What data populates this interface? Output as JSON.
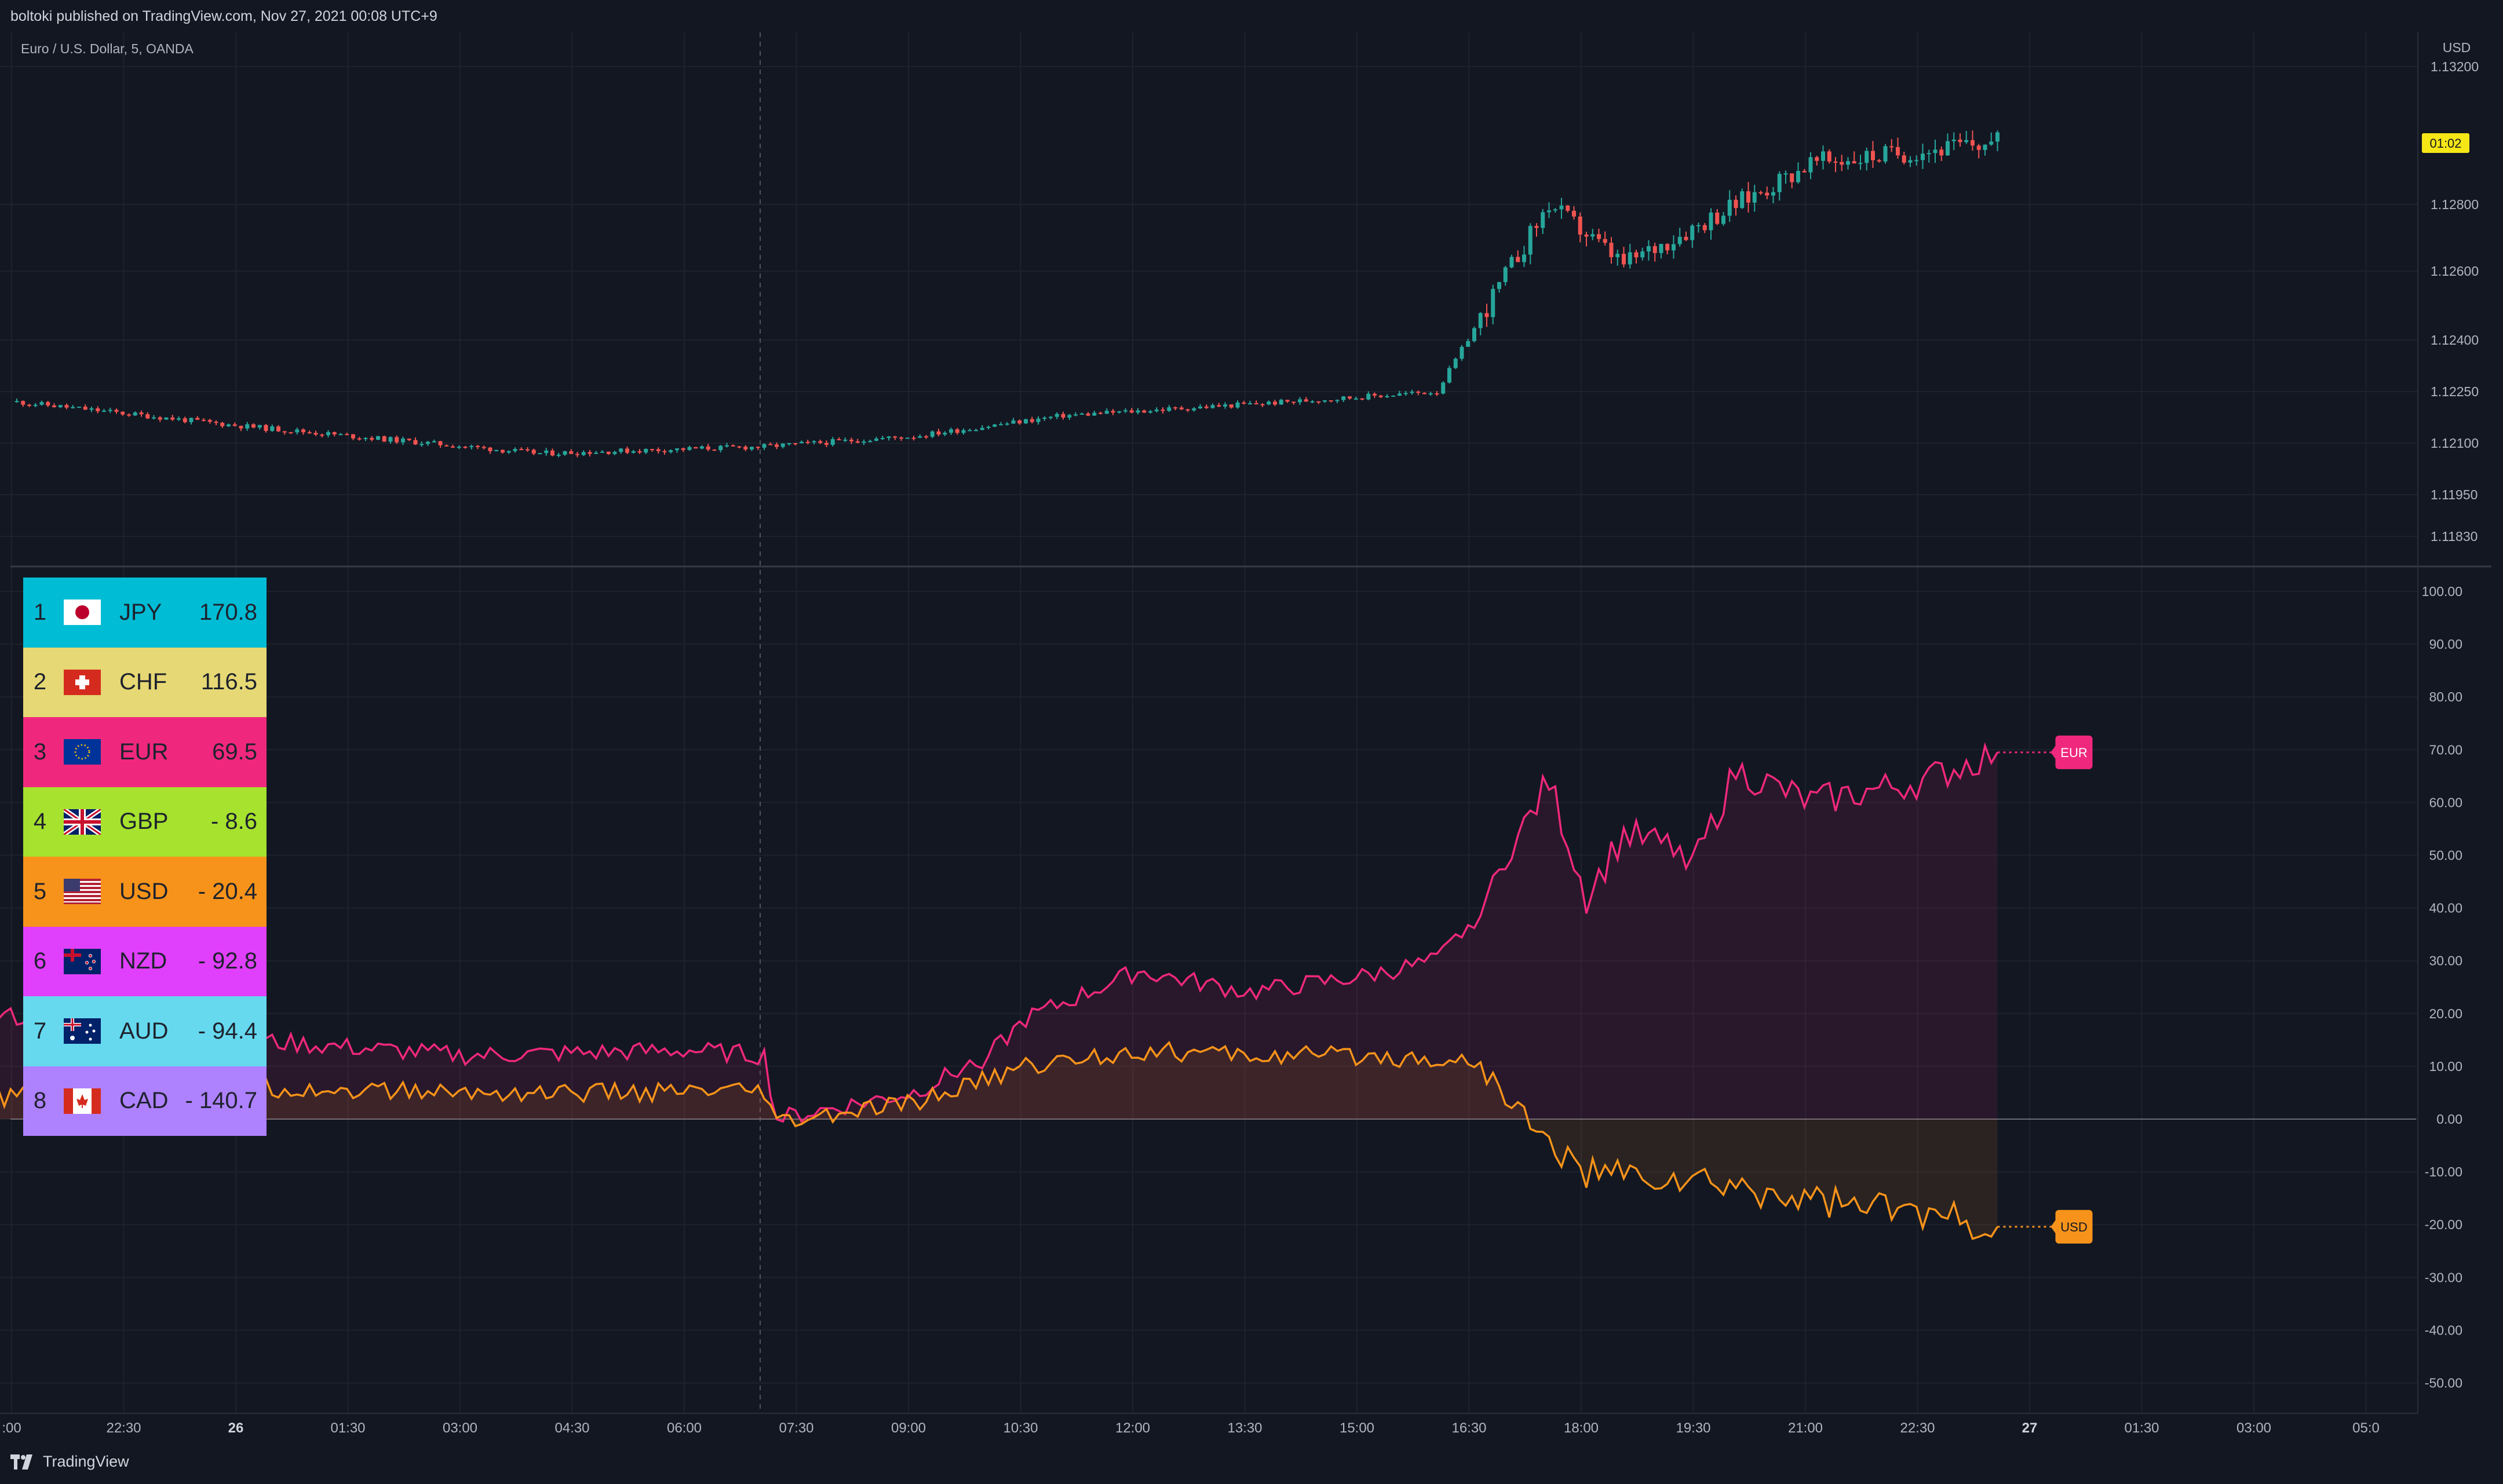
{
  "header": {
    "published": "boltoki published on TradingView.com, Nov 27, 2021 00:08 UTC+9",
    "symbol": "Euro / U.S. Dollar, 5, OANDA"
  },
  "footer": {
    "brand": "TradingView"
  },
  "colors": {
    "bg": "#131722",
    "grid": "#1e222d",
    "up": "#26a69a",
    "down": "#ef5350",
    "eur": "#f0287d",
    "usd": "#f7931a",
    "axis_text": "#b2b5be"
  },
  "price_axis": {
    "currency": "USD",
    "ticks": [
      "1.13200",
      "1.12800",
      "1.12600",
      "1.12400",
      "1.12250",
      "1.12100",
      "1.11950",
      "1.11830"
    ],
    "countdown": "01:02"
  },
  "strength_axis": {
    "ticks": [
      "100.00",
      "90.00",
      "80.00",
      "70.00",
      "60.00",
      "50.00",
      "40.00",
      "30.00",
      "20.00",
      "10.00",
      "0.00",
      "-10.00",
      "-20.00",
      "-30.00",
      "-40.00",
      "-50.00"
    ]
  },
  "time_axis": {
    "ticks": [
      ":00",
      "22:30",
      "26",
      "01:30",
      "03:00",
      "04:30",
      "06:00",
      "07:30",
      "09:00",
      "10:30",
      "12:00",
      "13:30",
      "15:00",
      "16:30",
      "18:00",
      "19:30",
      "21:00",
      "22:30",
      "27",
      "01:30",
      "03:00",
      "05:0"
    ]
  },
  "ranking": [
    {
      "rank": "1",
      "code": "JPY",
      "value": "170.8",
      "color": "#00bcd4",
      "flag": "jp-flag-icon"
    },
    {
      "rank": "2",
      "code": "CHF",
      "value": "116.5",
      "color": "#e6d874",
      "flag": "ch-flag-icon"
    },
    {
      "rank": "3",
      "code": "EUR",
      "value": "69.5",
      "color": "#f0287d",
      "flag": "eu-flag-icon"
    },
    {
      "rank": "4",
      "code": "GBP",
      "value": "- 8.6",
      "color": "#a6e22e",
      "flag": "gb-flag-icon"
    },
    {
      "rank": "5",
      "code": "USD",
      "value": "- 20.4",
      "color": "#f7931a",
      "flag": "us-flag-icon"
    },
    {
      "rank": "6",
      "code": "NZD",
      "value": "- 92.8",
      "color": "#e040fb",
      "flag": "nz-flag-icon"
    },
    {
      "rank": "7",
      "code": "AUD",
      "value": "- 94.4",
      "color": "#66d9ef",
      "flag": "au-flag-icon"
    },
    {
      "rank": "8",
      "code": "CAD",
      "value": "- 140.7",
      "color": "#ae81ff",
      "flag": "ca-flag-icon"
    }
  ],
  "chart_data": [
    {
      "type": "candlestick",
      "symbol": "Euro / U.S. Dollar, 5, OANDA",
      "ylim": [
        1.1178,
        1.1325
      ],
      "key_closes": [
        {
          "x": "Nov 25 21:00",
          "y": 1.1222
        },
        {
          "x": "Nov 26 00:00",
          "y": 1.1215
        },
        {
          "x": "Nov 26 04:00",
          "y": 1.1207
        },
        {
          "x": "Nov 26 07:00",
          "y": 1.1209
        },
        {
          "x": "Nov 26 09:00",
          "y": 1.1212
        },
        {
          "x": "Nov 26 11:00",
          "y": 1.1218
        },
        {
          "x": "Nov 26 14:00",
          "y": 1.1222
        },
        {
          "x": "Nov 26 16:00",
          "y": 1.1225
        },
        {
          "x": "Nov 26 17:30",
          "y": 1.128
        },
        {
          "x": "Nov 26 18:30",
          "y": 1.1262
        },
        {
          "x": "Nov 26 20:00",
          "y": 1.128
        },
        {
          "x": "Nov 26 21:00",
          "y": 1.1292
        },
        {
          "x": "Nov 26 23:30",
          "y": 1.1298
        }
      ]
    },
    {
      "type": "line",
      "ylim": [
        -55,
        105
      ],
      "series": [
        {
          "name": "EUR",
          "label": "EUR",
          "points": [
            {
              "x": "Nov 25 20:30",
              "y": 20
            },
            {
              "x": "Nov 26 00:00",
              "y": 15
            },
            {
              "x": "Nov 26 03:00",
              "y": 12
            },
            {
              "x": "Nov 26 06:00",
              "y": 13
            },
            {
              "x": "Nov 26 07:00",
              "y": 12
            },
            {
              "x": "Nov 26 07:10",
              "y": 0
            },
            {
              "x": "Nov 26 09:00",
              "y": 5
            },
            {
              "x": "Nov 26 10:00",
              "y": 12
            },
            {
              "x": "Nov 26 10:30",
              "y": 19
            },
            {
              "x": "Nov 26 12:00",
              "y": 28
            },
            {
              "x": "Nov 26 13:30",
              "y": 24
            },
            {
              "x": "Nov 26 15:00",
              "y": 27
            },
            {
              "x": "Nov 26 16:00",
              "y": 30
            },
            {
              "x": "Nov 26 16:30",
              "y": 38
            },
            {
              "x": "Nov 26 17:30",
              "y": 64
            },
            {
              "x": "Nov 26 18:00",
              "y": 42
            },
            {
              "x": "Nov 26 18:30",
              "y": 54
            },
            {
              "x": "Nov 26 19:30",
              "y": 50
            },
            {
              "x": "Nov 26 20:00",
              "y": 66
            },
            {
              "x": "Nov 26 21:00",
              "y": 60
            },
            {
              "x": "Nov 26 22:30",
              "y": 64
            },
            {
              "x": "Nov 26 23:30",
              "y": 69.5
            }
          ]
        },
        {
          "name": "USD",
          "label": "USD",
          "points": [
            {
              "x": "Nov 25 20:30",
              "y": 4
            },
            {
              "x": "Nov 26 00:00",
              "y": 6
            },
            {
              "x": "Nov 26 03:00",
              "y": 5
            },
            {
              "x": "Nov 26 06:00",
              "y": 5
            },
            {
              "x": "Nov 26 07:00",
              "y": 5
            },
            {
              "x": "Nov 26 07:10",
              "y": -1
            },
            {
              "x": "Nov 26 09:00",
              "y": 3
            },
            {
              "x": "Nov 26 10:30",
              "y": 10
            },
            {
              "x": "Nov 26 12:00",
              "y": 13
            },
            {
              "x": "Nov 26 13:30",
              "y": 12
            },
            {
              "x": "Nov 26 15:00",
              "y": 12
            },
            {
              "x": "Nov 26 16:30",
              "y": 11
            },
            {
              "x": "Nov 26 17:30",
              "y": -5
            },
            {
              "x": "Nov 26 18:00",
              "y": -10
            },
            {
              "x": "Nov 26 19:30",
              "y": -12
            },
            {
              "x": "Nov 26 21:00",
              "y": -15
            },
            {
              "x": "Nov 26 22:30",
              "y": -18
            },
            {
              "x": "Nov 26 23:30",
              "y": -20.4
            }
          ]
        }
      ]
    }
  ]
}
